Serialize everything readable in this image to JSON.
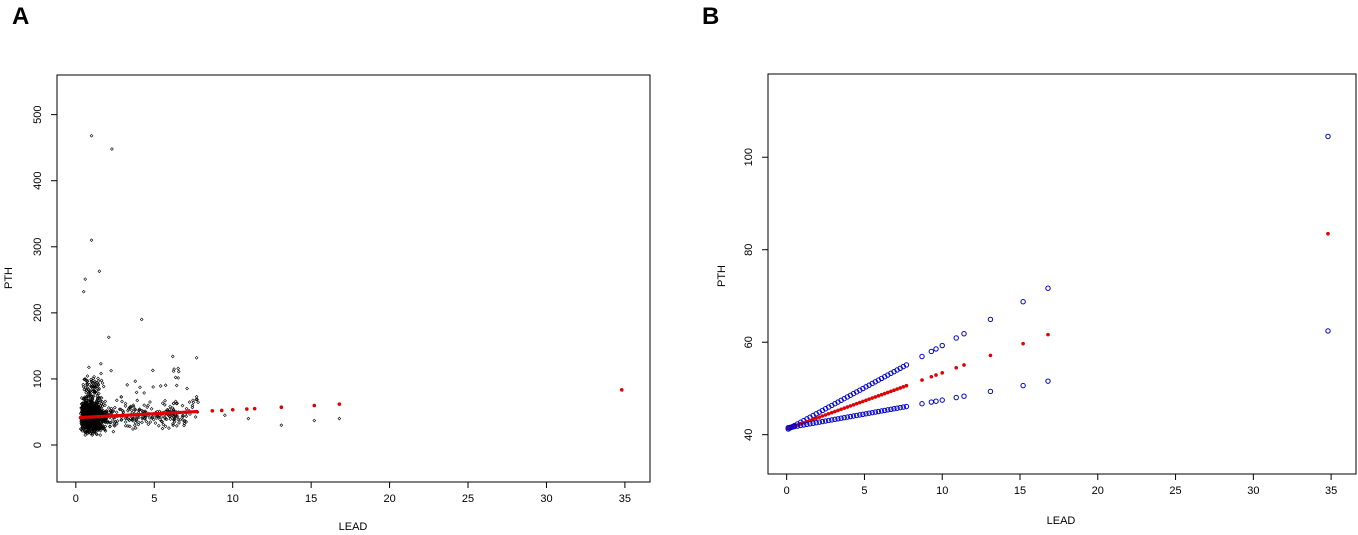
{
  "panels": [
    {
      "label": "A"
    },
    {
      "label": "B"
    }
  ],
  "chart_data": [
    {
      "type": "scatter",
      "panel": "A",
      "xlabel": "LEAD",
      "ylabel": "PTH",
      "xlim": [
        -1.2,
        36.6
      ],
      "ylim": [
        -56,
        560
      ],
      "xticks": [
        0,
        5,
        10,
        15,
        20,
        25,
        30,
        35
      ],
      "yticks": [
        0,
        100,
        200,
        300,
        400,
        500
      ],
      "scatter_color": "#000000",
      "fit_color": "#e00000",
      "scatter_summary": {
        "n_approx": 1500,
        "x_range": [
          0.2,
          16.8
        ],
        "y_range": [
          15,
          470
        ],
        "dense_x": [
          0.3,
          3.0
        ],
        "dense_y": [
          20,
          120
        ]
      },
      "outliers": [
        {
          "x": 1.0,
          "y": 468
        },
        {
          "x": 2.3,
          "y": 448
        },
        {
          "x": 1.0,
          "y": 310
        },
        {
          "x": 1.5,
          "y": 263
        },
        {
          "x": 0.6,
          "y": 251
        },
        {
          "x": 0.5,
          "y": 232
        },
        {
          "x": 4.2,
          "y": 190
        },
        {
          "x": 7.7,
          "y": 132
        },
        {
          "x": 2.1,
          "y": 163
        },
        {
          "x": 13.1,
          "y": 30
        },
        {
          "x": 15.2,
          "y": 37
        },
        {
          "x": 16.8,
          "y": 40
        },
        {
          "x": 7.7,
          "y": 73
        },
        {
          "x": 9.5,
          "y": 45
        },
        {
          "x": 11.0,
          "y": 40
        }
      ],
      "fitted": {
        "x": [
          0.3,
          1,
          1.5,
          2,
          2.5,
          3,
          3.5,
          4,
          4.5,
          5,
          5.5,
          6,
          6.5,
          7,
          7.7,
          8.7,
          9.3,
          10,
          10.9,
          11.4,
          13.1,
          15.2,
          16.8,
          34.8
        ],
        "y": [
          41.2,
          42.1,
          42.8,
          43.4,
          44.0,
          44.7,
          45.3,
          46.0,
          46.6,
          47.2,
          47.8,
          48.4,
          49.0,
          49.6,
          50.5,
          51.7,
          52.4,
          53.3,
          54.4,
          55.0,
          57.2,
          59.8,
          61.8,
          83.5
        ]
      }
    },
    {
      "type": "line",
      "panel": "B",
      "xlabel": "LEAD",
      "ylabel": "PTH",
      "xlim": [
        -1.2,
        36.6
      ],
      "ylim": [
        31.5,
        118
      ],
      "xticks": [
        0,
        5,
        10,
        15,
        20,
        25,
        30,
        35
      ],
      "yticks": [
        40,
        60,
        80,
        100
      ],
      "x": [
        0.1,
        0.2,
        0.3,
        0.4,
        0.5,
        0.7,
        0.9,
        1.1,
        1.3,
        1.5,
        1.7,
        1.9,
        2.1,
        2.3,
        2.5,
        2.7,
        2.9,
        3.1,
        3.3,
        3.5,
        3.7,
        3.9,
        4.1,
        4.3,
        4.5,
        4.7,
        4.9,
        5.1,
        5.3,
        5.5,
        5.7,
        5.9,
        6.1,
        6.3,
        6.5,
        6.7,
        6.9,
        7.1,
        7.3,
        7.5,
        7.7,
        8.7,
        9.3,
        9.6,
        10.0,
        10.9,
        11.4,
        13.1,
        15.2,
        16.8,
        34.8
      ],
      "series": [
        {
          "color": "#0000cc",
          "marker": "open-circle",
          "slope": 1.823,
          "intercept": 41.05
        },
        {
          "color": "#e00000",
          "marker": "filled-dot",
          "slope": 1.213,
          "intercept": 41.25
        },
        {
          "color": "#0000cc",
          "marker": "open-circle",
          "slope": 0.603,
          "intercept": 41.45
        }
      ]
    }
  ]
}
